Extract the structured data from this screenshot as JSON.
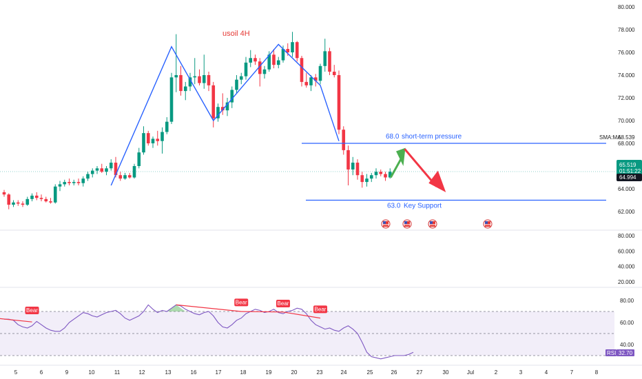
{
  "chart_data": [
    {
      "type": "candlestick",
      "title": "usoil 4H",
      "x_ticks": [
        "5",
        "6",
        "9",
        "10",
        "11",
        "12",
        "13",
        "16",
        "17",
        "18",
        "19",
        "20",
        "23",
        "24",
        "25",
        "26",
        "27",
        "30",
        "Jul",
        "2",
        "3",
        "4",
        "7",
        "8"
      ],
      "y_ticks": [
        80.0,
        78.0,
        76.0,
        74.0,
        72.0,
        70.0,
        68.0,
        66.0,
        64.0,
        62.0
      ],
      "ylim": [
        60.2,
        80.4
      ],
      "y_tick_labels": [
        "80.000",
        "78.000",
        "76.000",
        "74.000",
        "72.000",
        "70.000",
        "68.000",
        "66.000",
        "64.000",
        "62.000"
      ],
      "candles": [
        [
          63.7,
          63.9,
          63.3,
          63.5
        ],
        [
          63.5,
          63.6,
          62.2,
          62.6
        ],
        [
          62.6,
          63.0,
          62.4,
          62.8
        ],
        [
          62.8,
          63.0,
          62.5,
          62.7
        ],
        [
          62.7,
          62.9,
          62.4,
          62.6
        ],
        [
          62.6,
          63.3,
          62.5,
          63.1
        ],
        [
          63.1,
          63.6,
          62.9,
          63.4
        ],
        [
          63.4,
          63.7,
          63.0,
          63.2
        ],
        [
          63.2,
          63.5,
          62.9,
          63.1
        ],
        [
          63.1,
          63.3,
          62.8,
          62.9
        ],
        [
          62.9,
          63.2,
          62.7,
          62.8
        ],
        [
          62.8,
          64.4,
          62.7,
          64.2
        ],
        [
          64.2,
          64.7,
          63.8,
          64.4
        ],
        [
          64.4,
          64.8,
          64.2,
          64.6
        ],
        [
          64.6,
          64.9,
          64.3,
          64.5
        ],
        [
          64.5,
          64.8,
          64.3,
          64.6
        ],
        [
          64.6,
          64.9,
          64.3,
          64.5
        ],
        [
          64.5,
          65.1,
          64.2,
          64.9
        ],
        [
          64.9,
          65.5,
          64.7,
          65.3
        ],
        [
          65.3,
          65.8,
          65.0,
          65.6
        ],
        [
          65.6,
          66.0,
          65.3,
          65.8
        ],
        [
          65.8,
          66.2,
          65.4,
          65.5
        ],
        [
          65.5,
          66.0,
          65.2,
          65.8
        ],
        [
          65.8,
          66.6,
          65.6,
          66.3
        ],
        [
          66.3,
          66.8,
          65.0,
          65.2
        ],
        [
          65.2,
          65.5,
          64.7,
          64.9
        ],
        [
          64.9,
          65.4,
          64.8,
          65.2
        ],
        [
          65.2,
          65.4,
          64.9,
          65.0
        ],
        [
          65.0,
          66.2,
          64.9,
          66.0
        ],
        [
          66.0,
          67.6,
          65.8,
          67.2
        ],
        [
          67.2,
          69.5,
          67.0,
          68.9
        ],
        [
          68.9,
          69.1,
          67.8,
          68.0
        ],
        [
          68.0,
          68.6,
          67.6,
          68.4
        ],
        [
          68.4,
          69.1,
          67.8,
          68.2
        ],
        [
          68.2,
          69.4,
          67.1,
          69.0
        ],
        [
          69.0,
          70.3,
          68.8,
          69.9
        ],
        [
          69.9,
          74.2,
          69.7,
          73.8
        ],
        [
          73.8,
          77.6,
          72.5,
          74.0
        ],
        [
          74.0,
          74.8,
          72.2,
          72.6
        ],
        [
          72.6,
          73.4,
          71.8,
          73.0
        ],
        [
          73.0,
          74.2,
          72.6,
          73.8
        ],
        [
          73.8,
          75.5,
          73.2,
          73.9
        ],
        [
          73.9,
          74.5,
          73.1,
          73.3
        ],
        [
          73.3,
          75.8,
          72.8,
          74.0
        ],
        [
          74.0,
          74.3,
          72.6,
          73.1
        ],
        [
          73.1,
          73.4,
          69.4,
          70.2
        ],
        [
          70.2,
          71.5,
          69.9,
          71.2
        ],
        [
          71.2,
          72.4,
          70.5,
          70.9
        ],
        [
          70.9,
          72.0,
          70.4,
          71.6
        ],
        [
          71.6,
          73.0,
          71.1,
          72.7
        ],
        [
          72.7,
          74.0,
          72.4,
          73.6
        ],
        [
          73.6,
          74.2,
          73.2,
          73.9
        ],
        [
          73.9,
          75.6,
          73.6,
          75.1
        ],
        [
          75.1,
          76.2,
          74.7,
          75.5
        ],
        [
          75.5,
          75.8,
          74.9,
          75.2
        ],
        [
          75.2,
          75.5,
          73.0,
          74.1
        ],
        [
          74.1,
          74.8,
          73.7,
          74.5
        ],
        [
          74.5,
          76.1,
          74.3,
          75.8
        ],
        [
          75.8,
          76.3,
          74.6,
          74.9
        ],
        [
          74.9,
          75.6,
          74.6,
          75.3
        ],
        [
          75.3,
          76.6,
          75.1,
          76.3
        ],
        [
          76.3,
          76.8,
          75.7,
          76.0
        ],
        [
          76.0,
          77.8,
          75.6,
          76.9
        ],
        [
          76.9,
          77.0,
          75.2,
          75.5
        ],
        [
          75.5,
          75.7,
          73.0,
          73.4
        ],
        [
          73.4,
          74.2,
          72.9,
          73.1
        ],
        [
          73.1,
          74.0,
          72.6,
          73.8
        ],
        [
          73.8,
          74.1,
          73.0,
          73.5
        ],
        [
          73.5,
          75.0,
          73.2,
          74.8
        ],
        [
          74.8,
          77.2,
          74.3,
          76.1
        ],
        [
          76.1,
          76.4,
          74.0,
          74.3
        ],
        [
          74.3,
          74.9,
          73.8,
          74.0
        ],
        [
          74.0,
          74.4,
          68.8,
          69.2
        ],
        [
          69.2,
          69.5,
          67.0,
          67.4
        ],
        [
          67.4,
          67.8,
          64.3,
          65.7
        ],
        [
          65.7,
          66.8,
          65.2,
          66.3
        ],
        [
          66.3,
          66.6,
          64.8,
          65.2
        ],
        [
          65.2,
          65.5,
          64.1,
          64.6
        ],
        [
          64.6,
          65.3,
          64.2,
          64.9
        ],
        [
          64.9,
          65.4,
          64.6,
          65.2
        ],
        [
          65.2,
          65.8,
          64.9,
          65.5
        ],
        [
          65.5,
          65.7,
          65.1,
          65.3
        ],
        [
          65.3,
          65.5,
          64.7,
          65.0
        ],
        [
          65.0,
          65.8,
          64.9,
          65.5
        ]
      ],
      "annotations": [
        {
          "text": "68.0",
          "label": "short-term pressure",
          "value": 68.0
        },
        {
          "text": "63.0",
          "label": "Key Support",
          "value": 63.0
        }
      ],
      "price_tags": [
        {
          "text": "68.539",
          "name": "SMA:MA",
          "color": "#222222"
        },
        {
          "text": "65.519",
          "sub": "01:51:22",
          "color": "#089981"
        },
        {
          "text": "64.994",
          "color": "#131722"
        }
      ],
      "event_markers": [
        "US",
        "US",
        "US",
        "US"
      ]
    },
    {
      "type": "line",
      "title": "",
      "y_ticks": [
        80.0,
        60.0,
        40.0,
        20.0
      ],
      "y_tick_labels": [
        "80.000",
        "60.000",
        "40.000",
        "20.000"
      ],
      "ylim": [
        10,
        90
      ],
      "values": []
    },
    {
      "type": "line",
      "title": "RSI",
      "y_ticks": [
        80.0,
        60.0,
        40.0
      ],
      "y_tick_labels": [
        "80.00",
        "60.00",
        "40.00"
      ],
      "ylim": [
        24,
        92
      ],
      "band": [
        30,
        70
      ],
      "current_value": "32.70",
      "values": [
        63,
        63,
        62,
        58,
        56,
        55,
        57,
        61,
        58,
        55,
        53,
        52,
        52,
        55,
        60,
        63,
        66,
        69,
        68,
        66,
        65,
        67,
        69,
        70,
        71,
        68,
        64,
        62,
        64,
        66,
        70,
        76,
        72,
        69,
        71,
        70,
        73,
        76,
        75,
        72,
        70,
        68,
        67,
        69,
        70,
        66,
        60,
        56,
        55,
        58,
        62,
        64,
        68,
        70,
        72,
        71,
        69,
        70,
        72,
        69,
        68,
        70,
        71,
        73,
        72,
        68,
        62,
        58,
        56,
        54,
        55,
        53,
        52,
        55,
        57,
        54,
        50,
        42,
        33,
        29,
        28,
        27,
        28,
        29,
        30,
        30,
        30,
        31,
        33
      ],
      "bear_labels": [
        "Bear",
        "Bear",
        "Bear",
        "Bear"
      ]
    }
  ]
}
